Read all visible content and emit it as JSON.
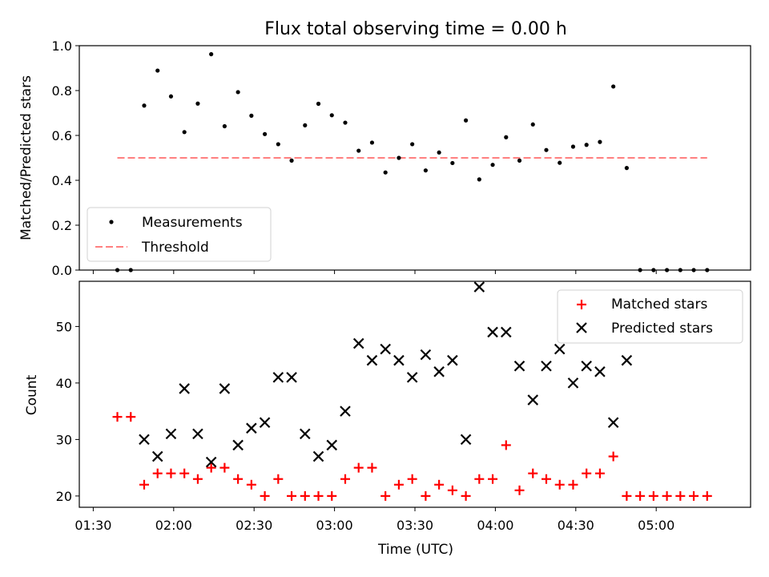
{
  "chart_data": [
    {
      "type": "scatter",
      "title": "Flux total observing time = 0.00 h",
      "ylabel": "Matched/Predicted stars",
      "xlabel": "",
      "ylim": [
        0,
        1.0
      ],
      "yticks": [
        "0.0",
        "0.2",
        "0.4",
        "0.6",
        "0.8",
        "1.0"
      ],
      "legend_position": "lower-left",
      "colors": {
        "measurements": "#000000",
        "threshold": "#ff8080"
      },
      "threshold": {
        "name": "Threshold",
        "value": 0.5,
        "x_start": "01:39",
        "x_end": "05:19"
      },
      "series": [
        {
          "name": "Measurements",
          "x": [
            "01:39",
            "01:44",
            "01:49",
            "01:54",
            "01:59",
            "02:04",
            "02:09",
            "02:14",
            "02:19",
            "02:24",
            "02:29",
            "02:34",
            "02:39",
            "02:44",
            "02:49",
            "02:54",
            "02:59",
            "03:04",
            "03:09",
            "03:14",
            "03:19",
            "03:24",
            "03:29",
            "03:34",
            "03:39",
            "03:44",
            "03:49",
            "03:54",
            "03:59",
            "04:04",
            "04:09",
            "04:14",
            "04:19",
            "04:24",
            "04:29",
            "04:34",
            "04:39",
            "04:44",
            "04:49",
            "04:54",
            "04:59",
            "05:04",
            "05:09",
            "05:14",
            "05:19"
          ],
          "y": [
            0.0,
            0.0,
            0.733,
            0.889,
            0.774,
            0.615,
            0.742,
            0.962,
            0.641,
            0.793,
            0.688,
            0.606,
            0.561,
            0.488,
            0.645,
            0.741,
            0.69,
            0.657,
            0.532,
            0.568,
            0.435,
            0.5,
            0.561,
            0.444,
            0.524,
            0.477,
            0.667,
            0.404,
            0.469,
            0.592,
            0.488,
            0.649,
            0.535,
            0.478,
            0.55,
            0.558,
            0.571,
            0.818,
            0.455,
            0.0,
            0.0,
            0.0,
            0.0,
            0.0,
            0.0
          ]
        }
      ]
    },
    {
      "type": "scatter",
      "title": "",
      "xlabel": "Time (UTC)",
      "ylabel": "Count",
      "ylim": [
        18,
        58
      ],
      "yticks": [
        "20",
        "30",
        "40",
        "50"
      ],
      "xticks": [
        "01:30",
        "02:00",
        "02:30",
        "03:00",
        "03:30",
        "04:00",
        "04:30",
        "05:00"
      ],
      "xlim": [
        "01:30",
        "05:30"
      ],
      "legend_position": "top-right",
      "colors": {
        "matched": "#ff0000",
        "predicted": "#000000"
      },
      "series": [
        {
          "name": "Matched stars",
          "marker": "+",
          "x": [
            "01:39",
            "01:44",
            "01:49",
            "01:54",
            "01:59",
            "02:04",
            "02:09",
            "02:14",
            "02:19",
            "02:24",
            "02:29",
            "02:34",
            "02:39",
            "02:44",
            "02:49",
            "02:54",
            "02:59",
            "03:04",
            "03:09",
            "03:14",
            "03:19",
            "03:24",
            "03:29",
            "03:34",
            "03:39",
            "03:44",
            "03:49",
            "03:54",
            "03:59",
            "04:04",
            "04:09",
            "04:14",
            "04:19",
            "04:24",
            "04:29",
            "04:34",
            "04:39",
            "04:44",
            "04:49",
            "04:54",
            "04:59",
            "05:04",
            "05:09",
            "05:14",
            "05:19"
          ],
          "y": [
            34,
            34,
            22,
            24,
            24,
            24,
            23,
            25,
            25,
            23,
            22,
            20,
            23,
            20,
            20,
            20,
            20,
            23,
            25,
            25,
            20,
            22,
            23,
            20,
            22,
            21,
            20,
            23,
            23,
            29,
            21,
            24,
            23,
            22,
            22,
            24,
            24,
            27,
            20,
            20,
            20,
            20,
            20,
            20,
            20
          ]
        },
        {
          "name": "Predicted stars",
          "marker": "x",
          "x": [
            "01:49",
            "01:54",
            "01:59",
            "02:04",
            "02:09",
            "02:14",
            "02:19",
            "02:24",
            "02:29",
            "02:34",
            "02:39",
            "02:44",
            "02:49",
            "02:54",
            "02:59",
            "03:04",
            "03:09",
            "03:14",
            "03:19",
            "03:24",
            "03:29",
            "03:34",
            "03:39",
            "03:44",
            "03:49",
            "03:54",
            "03:59",
            "04:04",
            "04:09",
            "04:14",
            "04:19",
            "04:24",
            "04:29",
            "04:34",
            "04:39",
            "04:44",
            "04:49"
          ],
          "y": [
            30,
            27,
            31,
            39,
            31,
            26,
            39,
            29,
            32,
            33,
            41,
            41,
            31,
            27,
            29,
            35,
            47,
            44,
            46,
            44,
            41,
            45,
            42,
            44,
            30,
            57,
            49,
            49,
            43,
            37,
            43,
            46,
            40,
            43,
            42,
            33,
            44
          ]
        }
      ]
    }
  ]
}
